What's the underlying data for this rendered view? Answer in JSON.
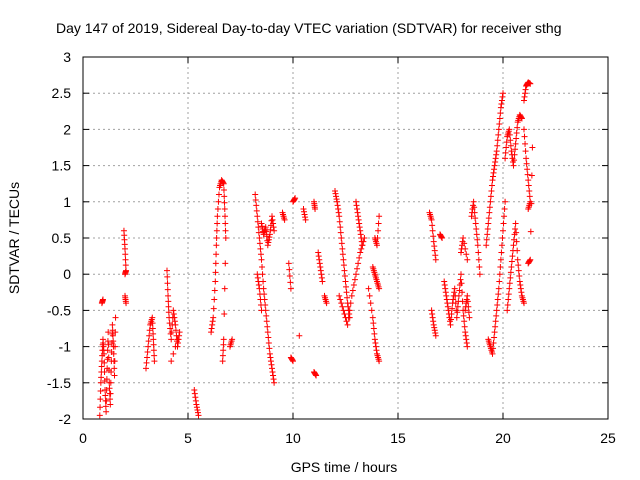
{
  "chart_data": {
    "type": "scatter",
    "title": "Day 147 of 2019, Sidereal Day-to-day VTEC variation (SDTVAR) for receiver sthg",
    "xlabel": "GPS time / hours",
    "ylabel": "SDTVAR / TECUs",
    "xlim": [
      0,
      25
    ],
    "ylim": [
      -2,
      3
    ],
    "xticks": [
      "0",
      "5",
      "10",
      "15",
      "20",
      "25"
    ],
    "yticks": [
      "-2",
      "-1.5",
      "-1",
      "-0.5",
      "0",
      "0.5",
      "1",
      "1.5",
      "2",
      "2.5",
      "3"
    ],
    "grid": true,
    "marker": "+",
    "color": "#ff0000",
    "series": [
      {
        "name": "SDTVAR",
        "segments": [
          [
            [
              0.8,
              -1.95
            ],
            [
              0.85,
              -1.5
            ],
            [
              0.9,
              -1.2
            ],
            [
              0.95,
              -0.9
            ],
            [
              1.0,
              -1.1
            ],
            [
              1.05,
              -1.6
            ],
            [
              1.1,
              -1.9
            ],
            [
              1.15,
              -1.3
            ],
            [
              1.2,
              -0.8
            ],
            [
              1.25,
              -1.5
            ],
            [
              1.3,
              -1.8
            ],
            [
              1.35,
              -1.2
            ],
            [
              1.4,
              -0.7
            ],
            [
              1.45,
              -1.0
            ],
            [
              1.5,
              -1.4
            ],
            [
              1.55,
              -0.6
            ]
          ],
          [
            [
              0.9,
              -0.4
            ],
            [
              0.95,
              -0.35
            ]
          ],
          [
            [
              1.95,
              0.6
            ],
            [
              2.0,
              0.35
            ],
            [
              2.05,
              0.05
            ],
            [
              2.0,
              0.0
            ]
          ],
          [
            [
              2.0,
              -0.3
            ],
            [
              2.05,
              -0.4
            ]
          ],
          [
            [
              3.0,
              -1.3
            ],
            [
              3.1,
              -1.0
            ],
            [
              3.2,
              -0.7
            ],
            [
              3.3,
              -0.6
            ],
            [
              3.35,
              -0.9
            ],
            [
              3.4,
              -1.2
            ]
          ],
          [
            [
              4.0,
              0.05
            ],
            [
              4.05,
              -0.3
            ],
            [
              4.1,
              -0.6
            ],
            [
              4.2,
              -0.9
            ],
            [
              4.3,
              -0.5
            ],
            [
              4.4,
              -0.7
            ],
            [
              4.5,
              -1.0
            ],
            [
              4.6,
              -0.8
            ],
            [
              4.2,
              -1.2
            ]
          ],
          [
            [
              5.3,
              -1.6
            ],
            [
              5.4,
              -1.8
            ],
            [
              5.5,
              -1.95
            ]
          ],
          [
            [
              6.1,
              -0.8
            ],
            [
              6.2,
              -0.6
            ],
            [
              6.3,
              -0.1
            ],
            [
              6.35,
              0.4
            ],
            [
              6.4,
              0.8
            ],
            [
              6.5,
              1.2
            ],
            [
              6.6,
              1.3
            ],
            [
              6.7,
              1.25
            ],
            [
              6.75,
              0.9
            ],
            [
              6.8,
              0.5
            ],
            [
              6.7,
              -0.9
            ],
            [
              6.65,
              -1.2
            ]
          ],
          [
            [
              7.0,
              -1.0
            ],
            [
              7.1,
              -0.9
            ]
          ],
          [
            [
              8.2,
              1.1
            ],
            [
              8.3,
              0.8
            ],
            [
              8.4,
              0.5
            ],
            [
              8.5,
              0.2
            ],
            [
              8.6,
              -0.2
            ],
            [
              8.7,
              -0.5
            ],
            [
              8.8,
              -0.8
            ],
            [
              8.9,
              -1.1
            ],
            [
              9.0,
              -1.3
            ],
            [
              9.1,
              -1.5
            ]
          ],
          [
            [
              8.3,
              0.0
            ],
            [
              8.4,
              -0.2
            ],
            [
              8.5,
              -0.5
            ]
          ],
          [
            [
              8.5,
              0.7
            ],
            [
              8.6,
              0.55
            ],
            [
              8.7,
              0.65
            ],
            [
              8.8,
              0.4
            ],
            [
              8.9,
              0.55
            ],
            [
              9.0,
              0.8
            ],
            [
              9.1,
              0.6
            ]
          ],
          [
            [
              9.5,
              0.85
            ],
            [
              9.6,
              0.75
            ]
          ],
          [
            [
              9.8,
              0.15
            ],
            [
              9.9,
              -0.2
            ]
          ],
          [
            [
              9.9,
              -1.15
            ],
            [
              10.0,
              -1.2
            ]
          ],
          [
            [
              10.0,
              1.0
            ],
            [
              10.1,
              1.05
            ]
          ],
          [
            [
              10.5,
              0.9
            ],
            [
              10.6,
              0.75
            ]
          ],
          [
            [
              10.3,
              -0.85
            ]
          ],
          [
            [
              11.0,
              1.0
            ],
            [
              11.05,
              0.9
            ]
          ],
          [
            [
              11.0,
              -1.35
            ],
            [
              11.1,
              -1.4
            ]
          ],
          [
            [
              11.2,
              0.3
            ],
            [
              11.3,
              0.1
            ],
            [
              11.4,
              -0.1
            ]
          ],
          [
            [
              11.5,
              -0.3
            ],
            [
              11.6,
              -0.4
            ]
          ],
          [
            [
              12.0,
              1.15
            ],
            [
              12.1,
              1.0
            ],
            [
              12.2,
              0.8
            ],
            [
              12.3,
              0.5
            ],
            [
              12.4,
              0.2
            ],
            [
              12.5,
              -0.1
            ],
            [
              12.6,
              -0.4
            ],
            [
              12.7,
              -0.6
            ]
          ],
          [
            [
              12.2,
              -0.3
            ],
            [
              12.4,
              -0.5
            ],
            [
              12.6,
              -0.7
            ],
            [
              12.8,
              -0.3
            ],
            [
              13.0,
              0.0
            ],
            [
              13.2,
              0.3
            ],
            [
              13.4,
              0.5
            ]
          ],
          [
            [
              13.0,
              1.0
            ],
            [
              13.1,
              0.8
            ],
            [
              13.2,
              0.6
            ],
            [
              13.3,
              0.4
            ]
          ],
          [
            [
              13.6,
              -0.2
            ],
            [
              13.8,
              -0.6
            ],
            [
              13.9,
              -0.9
            ],
            [
              14.0,
              -1.1
            ],
            [
              14.1,
              -1.2
            ]
          ],
          [
            [
              13.8,
              0.1
            ],
            [
              13.9,
              0.0
            ],
            [
              14.0,
              -0.1
            ],
            [
              14.1,
              -0.2
            ]
          ],
          [
            [
              13.9,
              0.5
            ],
            [
              14.0,
              0.4
            ],
            [
              14.1,
              0.8
            ]
          ],
          [
            [
              16.5,
              0.85
            ],
            [
              16.6,
              0.75
            ],
            [
              16.7,
              0.45
            ],
            [
              16.8,
              0.2
            ]
          ],
          [
            [
              16.6,
              -0.5
            ],
            [
              16.7,
              -0.7
            ],
            [
              16.8,
              -0.85
            ]
          ],
          [
            [
              17.0,
              0.55
            ],
            [
              17.1,
              0.5
            ]
          ],
          [
            [
              17.2,
              -0.1
            ],
            [
              17.3,
              -0.3
            ],
            [
              17.4,
              -0.5
            ],
            [
              17.5,
              -0.7
            ],
            [
              17.6,
              -0.4
            ],
            [
              17.7,
              -0.2
            ],
            [
              17.8,
              -0.6
            ],
            [
              17.9,
              -0.3
            ],
            [
              18.0,
              0.0
            ],
            [
              18.1,
              -0.5
            ],
            [
              18.2,
              -0.8
            ],
            [
              18.3,
              -1.0
            ]
          ],
          [
            [
              18.0,
              0.3
            ],
            [
              18.1,
              0.5
            ],
            [
              18.3,
              0.2
            ]
          ],
          [
            [
              18.5,
              0.8
            ],
            [
              18.6,
              1.0
            ],
            [
              18.7,
              0.7
            ],
            [
              18.8,
              0.4
            ],
            [
              18.9,
              0.0
            ]
          ],
          [
            [
              18.2,
              -0.5
            ],
            [
              18.3,
              -0.3
            ],
            [
              18.4,
              -0.6
            ]
          ],
          [
            [
              19.2,
              0.4
            ],
            [
              19.3,
              0.7
            ],
            [
              19.4,
              1.0
            ],
            [
              19.5,
              1.3
            ],
            [
              19.6,
              1.5
            ],
            [
              19.7,
              1.7
            ],
            [
              19.8,
              2.0
            ],
            [
              19.9,
              2.3
            ],
            [
              20.0,
              2.5
            ]
          ],
          [
            [
              19.3,
              -0.9
            ],
            [
              19.4,
              -1.0
            ],
            [
              19.5,
              -1.1
            ],
            [
              19.6,
              -0.8
            ],
            [
              19.7,
              -0.5
            ],
            [
              19.8,
              -0.2
            ],
            [
              19.9,
              0.2
            ],
            [
              20.0,
              0.6
            ],
            [
              20.1,
              1.0
            ]
          ],
          [
            [
              20.1,
              1.6
            ],
            [
              20.2,
              1.9
            ],
            [
              20.3,
              2.0
            ],
            [
              20.4,
              1.7
            ],
            [
              20.5,
              1.5
            ],
            [
              20.6,
              1.8
            ],
            [
              20.7,
              2.1
            ],
            [
              20.8,
              2.2
            ],
            [
              20.9,
              2.15
            ]
          ],
          [
            [
              20.2,
              -0.5
            ],
            [
              20.3,
              -0.2
            ],
            [
              20.4,
              0.1
            ],
            [
              20.5,
              0.4
            ],
            [
              20.6,
              0.7
            ],
            [
              20.7,
              0.2
            ],
            [
              20.8,
              -0.1
            ],
            [
              20.9,
              -0.3
            ],
            [
              21.0,
              -0.4
            ]
          ],
          [
            [
              21.0,
              2.0
            ],
            [
              21.1,
              1.6
            ],
            [
              21.2,
              1.3
            ],
            [
              21.3,
              1.0
            ],
            [
              21.2,
              0.9
            ]
          ],
          [
            [
              21.0,
              2.4
            ],
            [
              21.1,
              2.6
            ],
            [
              21.2,
              2.65
            ],
            [
              21.3,
              2.63
            ]
          ],
          [
            [
              21.2,
              0.15
            ],
            [
              21.3,
              0.2
            ],
            [
              21.4,
              1.75
            ]
          ]
        ]
      }
    ]
  }
}
